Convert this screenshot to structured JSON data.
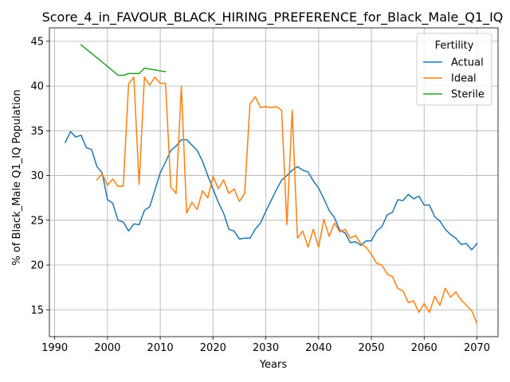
{
  "chart_data": {
    "type": "line",
    "title": "Score_4_in_FAVOUR_BLACK_HIRING_PREFERENCE_for_Black_Male_Q1_IQ",
    "xlabel": "Years",
    "ylabel": "% of Black_Male Q1_IQ Population",
    "xlim": [
      1989,
      2074
    ],
    "ylim": [
      12,
      46.5
    ],
    "xticks": [
      1990,
      2000,
      2010,
      2020,
      2030,
      2040,
      2050,
      2060,
      2070
    ],
    "yticks": [
      15,
      20,
      25,
      30,
      35,
      40,
      45
    ],
    "grid": true,
    "legend": {
      "title": "Fertility",
      "placement": "top-right"
    },
    "series": [
      {
        "name": "Actual",
        "color": "#1f77b4",
        "x": [
          1992,
          1993,
          1994,
          1995,
          1996,
          1997,
          1998,
          1999,
          2000,
          2001,
          2002,
          2003,
          2004,
          2005,
          2006,
          2007,
          2008,
          2009,
          2010,
          2011,
          2012,
          2013,
          2014,
          2015,
          2016,
          2017,
          2018,
          2019,
          2020,
          2021,
          2022,
          2023,
          2024,
          2025,
          2026,
          2027,
          2028,
          2029,
          2030,
          2031,
          2032,
          2033,
          2034,
          2035,
          2036,
          2037,
          2038,
          2039,
          2040,
          2041,
          2042,
          2043,
          2044,
          2045,
          2046,
          2047,
          2048,
          2049,
          2050,
          2051,
          2052,
          2053,
          2054,
          2055,
          2056,
          2057,
          2058,
          2059,
          2060,
          2061,
          2062,
          2063,
          2064,
          2065,
          2066,
          2067,
          2068,
          2069,
          2070
        ],
        "values": [
          33.7,
          34.9,
          34.3,
          34.5,
          33.1,
          32.9,
          31.0,
          30.3,
          27.3,
          26.9,
          25.0,
          24.8,
          23.8,
          24.6,
          24.5,
          26.1,
          26.5,
          28.4,
          30.3,
          31.5,
          32.8,
          33.3,
          34.0,
          34.0,
          33.4,
          32.8,
          31.6,
          30.0,
          28.5,
          27.0,
          25.8,
          24.0,
          23.8,
          22.9,
          23.0,
          23.0,
          24.0,
          24.7,
          26.0,
          27.2,
          28.4,
          29.5,
          30.0,
          30.6,
          31.0,
          30.6,
          30.4,
          29.4,
          28.6,
          27.4,
          26.1,
          25.3,
          23.9,
          23.6,
          22.5,
          22.6,
          22.2,
          22.7,
          22.7,
          23.8,
          24.3,
          25.6,
          25.9,
          27.3,
          27.2,
          27.9,
          27.4,
          27.7,
          26.7,
          26.7,
          25.4,
          24.9,
          24.0,
          23.4,
          23.0,
          22.3,
          22.4,
          21.7,
          22.4
        ]
      },
      {
        "name": "Ideal",
        "color": "#ff7f0e",
        "x": [
          1998,
          1999,
          2000,
          2001,
          2002,
          2003,
          2004,
          2005,
          2006,
          2007,
          2008,
          2009,
          2010,
          2011,
          2012,
          2013,
          2014,
          2015,
          2016,
          2017,
          2018,
          2019,
          2020,
          2021,
          2022,
          2023,
          2024,
          2025,
          2026,
          2027,
          2028,
          2029,
          2030,
          2031,
          2032,
          2033,
          2034,
          2035,
          2036,
          2037,
          2038,
          2039,
          2040,
          2041,
          2042,
          2043,
          2044,
          2045,
          2046,
          2047,
          2048,
          2049,
          2050,
          2051,
          2052,
          2053,
          2054,
          2055,
          2056,
          2057,
          2058,
          2059,
          2060,
          2061,
          2062,
          2063,
          2064,
          2065,
          2066,
          2067,
          2068,
          2069,
          2070
        ],
        "values": [
          29.5,
          30.2,
          28.9,
          29.6,
          28.8,
          28.8,
          40.2,
          41.0,
          29.0,
          41.0,
          40.1,
          41.0,
          40.3,
          40.3,
          28.7,
          28.0,
          40.0,
          25.8,
          27.0,
          26.2,
          28.3,
          27.5,
          29.9,
          28.5,
          29.5,
          28.0,
          28.5,
          27.1,
          28.0,
          38.0,
          38.8,
          37.6,
          37.7,
          37.6,
          37.7,
          37.3,
          24.5,
          37.3,
          23.0,
          23.8,
          22.0,
          24.0,
          22.0,
          25.1,
          23.2,
          24.7,
          23.7,
          24.0,
          23.0,
          23.3,
          22.4,
          22.0,
          21.2,
          20.2,
          20.0,
          19.0,
          18.7,
          17.4,
          17.1,
          15.8,
          16.0,
          14.7,
          15.7,
          14.7,
          16.5,
          15.5,
          17.4,
          16.4,
          17.0,
          16.1,
          15.5,
          14.9,
          13.5
        ]
      },
      {
        "name": "Sterile",
        "color": "#2ca02c",
        "x": [
          1995,
          2000,
          2002,
          2003,
          2004,
          2005,
          2006,
          2007,
          2008,
          2009,
          2010,
          2011
        ],
        "values": [
          44.6,
          42.2,
          41.2,
          41.2,
          41.4,
          41.4,
          41.4,
          42.0,
          41.9,
          41.8,
          41.7,
          41.6
        ]
      }
    ]
  }
}
